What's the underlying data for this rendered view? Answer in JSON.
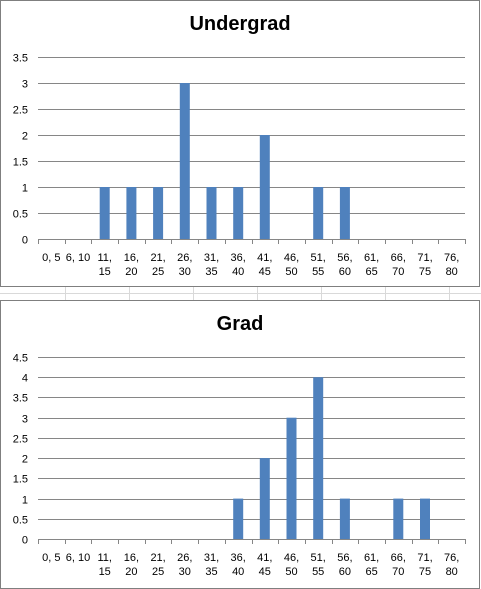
{
  "chart_data": [
    {
      "type": "bar",
      "title": "Undergrad",
      "categories": [
        [
          "0, 5",
          ""
        ],
        [
          "6, 10",
          ""
        ],
        [
          "11,",
          "15"
        ],
        [
          "16,",
          "20"
        ],
        [
          "21,",
          "25"
        ],
        [
          "26,",
          "30"
        ],
        [
          "31,",
          "35"
        ],
        [
          "36,",
          "40"
        ],
        [
          "41,",
          "45"
        ],
        [
          "46,",
          "50"
        ],
        [
          "51,",
          "55"
        ],
        [
          "56,",
          "60"
        ],
        [
          "61,",
          "65"
        ],
        [
          "66,",
          "70"
        ],
        [
          "71,",
          "75"
        ],
        [
          "76,",
          "80"
        ]
      ],
      "values": [
        0,
        0,
        1,
        1,
        1,
        3,
        1,
        1,
        2,
        0,
        1,
        1,
        0,
        0,
        0,
        0
      ],
      "ylim": [
        0,
        3.5
      ],
      "yticks": [
        "0",
        "0.5",
        "1",
        "1.5",
        "2",
        "2.5",
        "3",
        "3.5"
      ],
      "grid": true,
      "color": "#4f81bd"
    },
    {
      "type": "bar",
      "title": "Grad",
      "categories": [
        [
          "0, 5",
          ""
        ],
        [
          "6, 10",
          ""
        ],
        [
          "11,",
          "15"
        ],
        [
          "16,",
          "20"
        ],
        [
          "21,",
          "25"
        ],
        [
          "26,",
          "30"
        ],
        [
          "31,",
          "35"
        ],
        [
          "36,",
          "40"
        ],
        [
          "41,",
          "45"
        ],
        [
          "46,",
          "50"
        ],
        [
          "51,",
          "55"
        ],
        [
          "56,",
          "60"
        ],
        [
          "61,",
          "65"
        ],
        [
          "66,",
          "70"
        ],
        [
          "71,",
          "75"
        ],
        [
          "76,",
          "80"
        ]
      ],
      "values": [
        0,
        0,
        0,
        0,
        0,
        0,
        0,
        1,
        2,
        3,
        4,
        1,
        0,
        1,
        1,
        0
      ],
      "ylim": [
        0,
        4.5
      ],
      "yticks": [
        "0",
        "0.5",
        "1",
        "1.5",
        "2",
        "2.5",
        "3",
        "3.5",
        "4",
        "4.5"
      ],
      "grid": true,
      "color": "#4f81bd"
    }
  ]
}
